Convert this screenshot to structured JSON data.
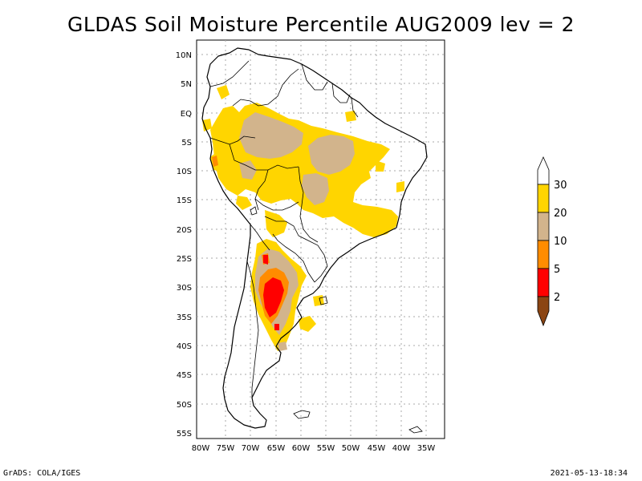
{
  "title": "GLDAS Soil Moisture Percentile AUG2009 lev = 2",
  "footer_left": "GrADS: COLA/IGES",
  "footer_right": "2021-05-13-18:34",
  "lat_ticks": [
    "10N",
    "5N",
    "EQ",
    "5S",
    "10S",
    "15S",
    "20S",
    "25S",
    "30S",
    "35S",
    "40S",
    "45S",
    "50S",
    "55S"
  ],
  "lon_ticks": [
    "80W",
    "75W",
    "70W",
    "65W",
    "60W",
    "55W",
    "50W",
    "45W",
    "40W",
    "35W"
  ],
  "colorbar": {
    "labels": [
      "30",
      "20",
      "10",
      "5",
      "2"
    ],
    "colors": {
      "yellow": "#ffd500",
      "tan": "#d2b48c",
      "orange": "#ff8c00",
      "red": "#ff0000",
      "brown": "#8b4513"
    }
  },
  "colors": {
    "land_outline": "#000000",
    "grid": "#aaaaaa"
  }
}
